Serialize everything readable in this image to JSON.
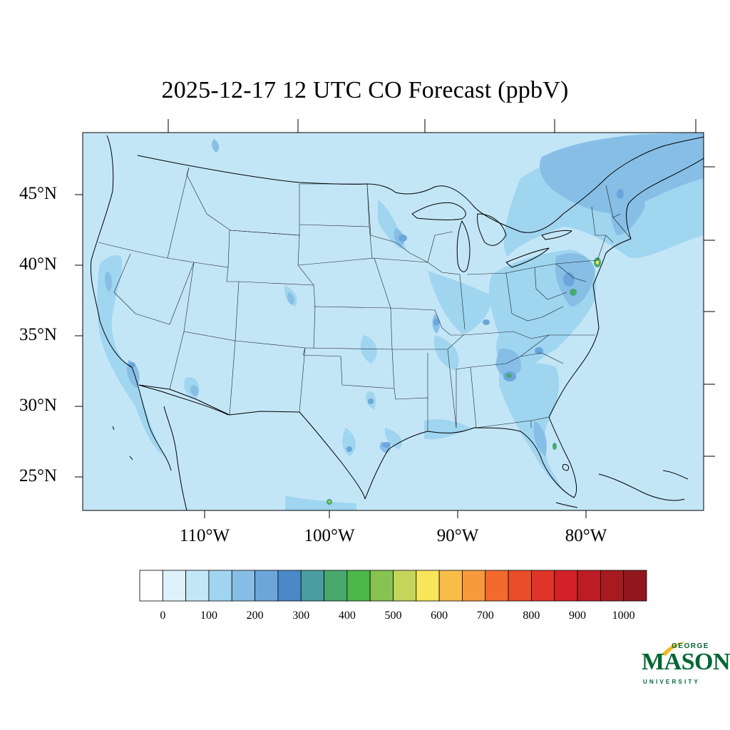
{
  "title": "2025-12-17 12 UTC CO Forecast (ppbV)",
  "map": {
    "projection": "lambert-conformal",
    "background_color": "#c3e6f7",
    "lat_labels": [
      "45°N",
      "40°N",
      "35°N",
      "30°N",
      "25°N"
    ],
    "lon_labels": [
      "110°W",
      "100°W",
      "90°W",
      "80°W"
    ],
    "outlines": [
      "coastlines",
      "state boundaries",
      "country boundaries",
      "great lakes"
    ]
  },
  "colorbar": {
    "labels": [
      "0",
      "100",
      "200",
      "300",
      "400",
      "500",
      "600",
      "700",
      "800",
      "900",
      "1000"
    ],
    "colors": [
      "#ffffff",
      "#dff2fb",
      "#c3e6f7",
      "#9fd5f0",
      "#86bde5",
      "#6aa6da",
      "#4a88c8",
      "#4a9ea1",
      "#48a86e",
      "#4cb84a",
      "#86c350",
      "#c4d65a",
      "#f7e55a",
      "#f7bc4a",
      "#f79a3c",
      "#f26b2d",
      "#e84e2a",
      "#de3528",
      "#d42028",
      "#bc1d24",
      "#a71a20",
      "#92171c"
    ]
  },
  "hotspots_note_colors": {
    "elevated": "#9fd5f0",
    "moderate": "#86bde5",
    "high": "#6aa6da",
    "very_high": "#48a86e",
    "peak": "#f7e55a"
  },
  "logo": {
    "line1": "GEORGE",
    "line2": "MASON",
    "line3": "UNIVERSITY",
    "color": "#006633",
    "accent": "#f2b821"
  }
}
